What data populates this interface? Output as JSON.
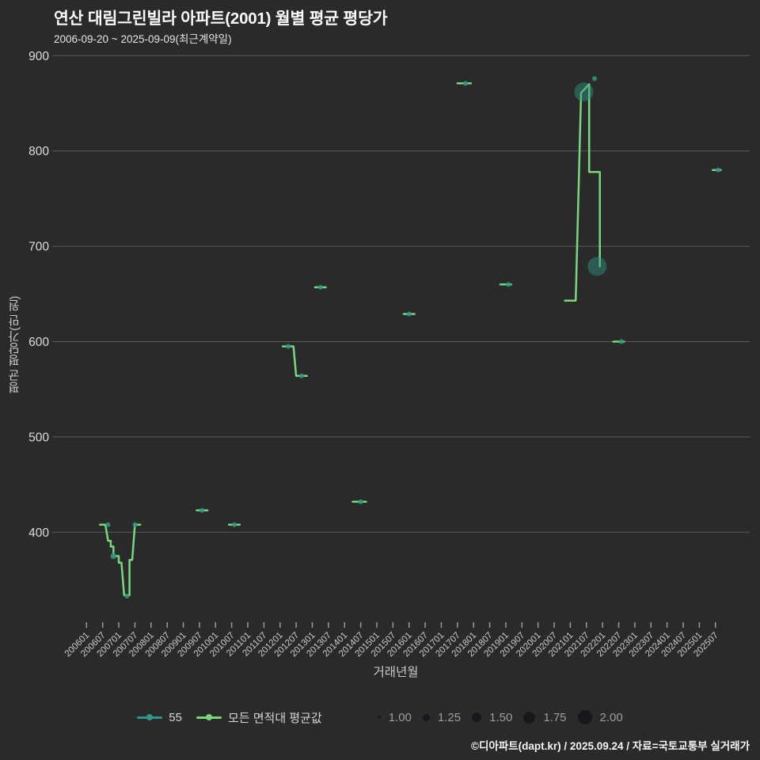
{
  "title": "연산 대림그린빌라 아파트(2001) 월별 평균 평당가",
  "subtitle": "2006-09-20 ~ 2025-09-09(최근계약일)",
  "footer": {
    "text": "©디아파트(dapt.kr) / 2025.09.24 / 자료=국토교통부 실거래가"
  },
  "colors": {
    "background": "#2a2a2a",
    "grid": "#8c8c8c",
    "tick": "#9a9a9a",
    "tick_label": "#c9c9c9",
    "line_green": "#79d879",
    "dot_teal": "#2e9688",
    "size_dot": "#17171e"
  },
  "legend": {
    "series": [
      {
        "label": "55",
        "color": "#2e9688"
      },
      {
        "label": "모든 면적대 평균값",
        "color": "#79d879"
      }
    ],
    "sizes": [
      {
        "label": "1.00",
        "r": 2
      },
      {
        "label": "1.25",
        "r": 4.5
      },
      {
        "label": "1.50",
        "r": 6
      },
      {
        "label": "1.75",
        "r": 7.5
      },
      {
        "label": "2.00",
        "r": 9
      }
    ]
  },
  "chart_data": {
    "type": "line+scatter",
    "xlabel": "거래년월",
    "ylabel": "평균 평당가(만 원)",
    "ylim": [
      325,
      905
    ],
    "y_ticks": [
      400,
      500,
      600,
      700,
      800,
      900
    ],
    "x_ticks": [
      "200601",
      "200607",
      "200701",
      "200707",
      "200801",
      "200807",
      "200901",
      "200907",
      "201001",
      "201007",
      "201101",
      "201107",
      "201201",
      "201207",
      "201301",
      "201307",
      "201401",
      "201407",
      "201501",
      "201507",
      "201601",
      "201607",
      "201701",
      "201707",
      "201801",
      "201807",
      "201901",
      "201907",
      "202001",
      "202007",
      "202101",
      "202107",
      "202201",
      "202207",
      "202301",
      "202307",
      "202401",
      "202407",
      "202501",
      "202507"
    ],
    "series": [
      {
        "name": "55",
        "type": "scatter",
        "color": "#2e9688",
        "points": [
          {
            "x": "200609",
            "y": 408,
            "size": 1.0
          },
          {
            "x": "200611",
            "y": 375,
            "size": 1.1
          },
          {
            "x": "200704",
            "y": 333,
            "size": 1.0
          },
          {
            "x": "200707",
            "y": 408,
            "size": 1.0
          },
          {
            "x": "200908",
            "y": 423,
            "size": 1.0
          },
          {
            "x": "201008",
            "y": 408,
            "size": 1.0
          },
          {
            "x": "201204",
            "y": 595,
            "size": 1.0
          },
          {
            "x": "201209",
            "y": 564,
            "size": 1.0
          },
          {
            "x": "201304",
            "y": 657,
            "size": 1.0
          },
          {
            "x": "201407",
            "y": 432,
            "size": 1.0
          },
          {
            "x": "201601",
            "y": 629,
            "size": 1.0
          },
          {
            "x": "201710",
            "y": 871,
            "size": 1.0
          },
          {
            "x": "201902",
            "y": 660,
            "size": 1.0
          },
          {
            "x": "202106",
            "y": 862,
            "size": 2.2
          },
          {
            "x": "202110",
            "y": 876,
            "size": 1.0
          },
          {
            "x": "202111",
            "y": 679,
            "size": 2.2
          },
          {
            "x": "202208",
            "y": 600,
            "size": 1.0
          },
          {
            "x": "202508",
            "y": 780,
            "size": 1.0
          }
        ]
      },
      {
        "name": "모든 면적대 평균값",
        "type": "line",
        "color": "#79d879",
        "segments": [
          [
            [
              "200606",
              408
            ],
            [
              "200608",
              408
            ],
            [
              "200609",
              391
            ],
            [
              "200610",
              391
            ],
            [
              "200610",
              385
            ],
            [
              "200611",
              385
            ],
            [
              "200611",
              375
            ],
            [
              "200701",
              375
            ],
            [
              "200701",
              368
            ],
            [
              "200702",
              368
            ],
            [
              "200703",
              334
            ],
            [
              "200705",
              334
            ],
            [
              "200705",
              371
            ],
            [
              "200706",
              371
            ],
            [
              "200707",
              408
            ],
            [
              "200709",
              408
            ]
          ],
          [
            [
              "200906",
              423
            ],
            [
              "200910",
              423
            ]
          ],
          [
            [
              "201006",
              408
            ],
            [
              "201010",
              408
            ]
          ],
          [
            [
              "201202",
              595
            ],
            [
              "201206",
              595
            ],
            [
              "201207",
              564
            ],
            [
              "201211",
              564
            ]
          ],
          [
            [
              "201302",
              657
            ],
            [
              "201306",
              657
            ]
          ],
          [
            [
              "201404",
              432
            ],
            [
              "201409",
              432
            ]
          ],
          [
            [
              "201511",
              629
            ],
            [
              "201603",
              629
            ]
          ],
          [
            [
              "201707",
              871
            ],
            [
              "201712",
              871
            ]
          ],
          [
            [
              "201811",
              660
            ],
            [
              "201903",
              660
            ]
          ],
          [
            [
              "202011",
              643
            ],
            [
              "202103",
              643
            ],
            [
              "202105",
              861
            ],
            [
              "202108",
              870
            ],
            [
              "202108",
              778
            ],
            [
              "202112",
              778
            ],
            [
              "202112",
              679
            ]
          ],
          [
            [
              "202205",
              600
            ],
            [
              "202209",
              600
            ]
          ],
          [
            [
              "202506",
              780
            ],
            [
              "202509",
              780
            ]
          ]
        ]
      }
    ]
  }
}
